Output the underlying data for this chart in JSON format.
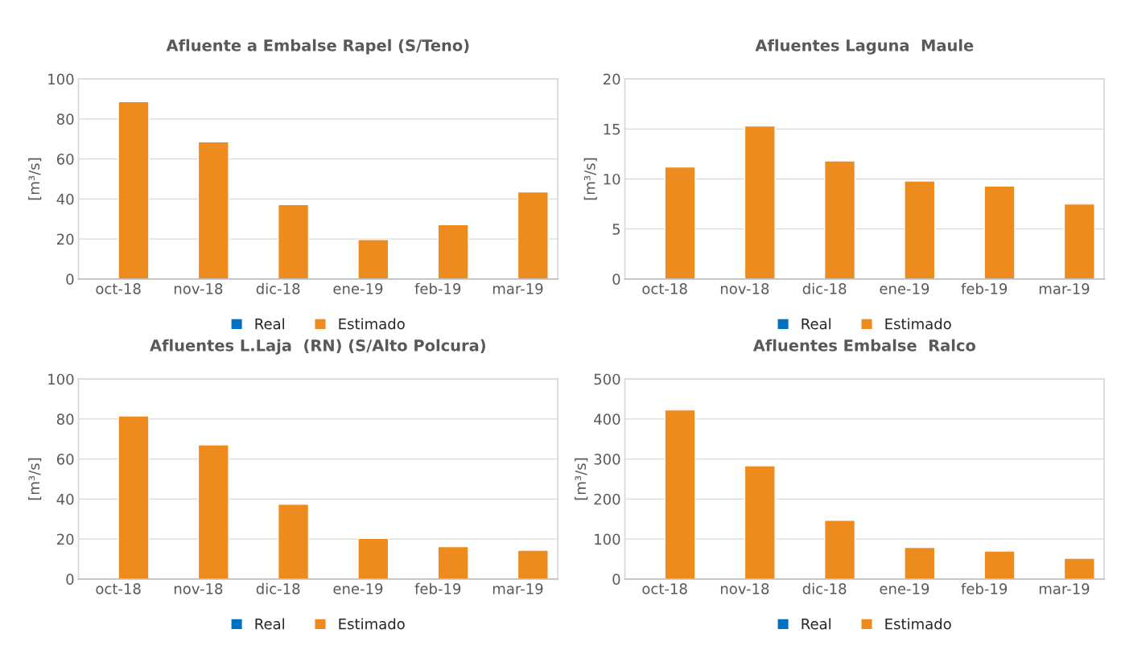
{
  "chart_data": [
    {
      "type": "bar",
      "title": "Afluente a Embalse Rapel (S/Teno)",
      "ylabel": "[m³/s]",
      "categories": [
        "oct-18",
        "nov-18",
        "dic-18",
        "ene-19",
        "feb-19",
        "mar-19"
      ],
      "ylim": [
        0,
        100
      ],
      "yticks": [
        0,
        20,
        40,
        60,
        80,
        100
      ],
      "grid": "y",
      "legend": "bottom",
      "series": [
        {
          "name": "Real",
          "color": "#0070c0",
          "values": [
            null,
            null,
            null,
            null,
            null,
            null
          ]
        },
        {
          "name": "Estimado",
          "color": "#ed8b1f",
          "values": [
            88.7,
            68.6,
            37.2,
            19.7,
            27.2,
            43.5
          ]
        }
      ]
    },
    {
      "type": "bar",
      "title": "Afluentes Laguna  Maule",
      "ylabel": "[m³/s]",
      "categories": [
        "oct-18",
        "nov-18",
        "dic-18",
        "ene-19",
        "feb-19",
        "mar-19"
      ],
      "ylim": [
        0,
        20
      ],
      "yticks": [
        0,
        5,
        10,
        15,
        20
      ],
      "grid": "y",
      "legend": "bottom",
      "series": [
        {
          "name": "Real",
          "color": "#0070c0",
          "values": [
            null,
            null,
            null,
            null,
            null,
            null
          ]
        },
        {
          "name": "Estimado",
          "color": "#ed8b1f",
          "values": [
            11.2,
            15.3,
            11.8,
            9.8,
            9.3,
            7.5
          ]
        }
      ]
    },
    {
      "type": "bar",
      "title": "Afluentes L.Laja  (RN) (S/Alto Polcura)",
      "ylabel": "[m³/s]",
      "categories": [
        "oct-18",
        "nov-18",
        "dic-18",
        "ene-19",
        "feb-19",
        "mar-19"
      ],
      "ylim": [
        0,
        100
      ],
      "yticks": [
        0,
        20,
        40,
        60,
        80,
        100
      ],
      "grid": "y",
      "legend": "bottom",
      "series": [
        {
          "name": "Real",
          "color": "#0070c0",
          "values": [
            null,
            null,
            null,
            null,
            null,
            null
          ]
        },
        {
          "name": "Estimado",
          "color": "#ed8b1f",
          "values": [
            81.5,
            67.1,
            37.4,
            20.3,
            16.2,
            14.4
          ]
        }
      ]
    },
    {
      "type": "bar",
      "title": "Afluentes Embalse  Ralco",
      "ylabel": "[m³/s]",
      "categories": [
        "oct-18",
        "nov-18",
        "dic-18",
        "ene-19",
        "feb-19",
        "mar-19"
      ],
      "ylim": [
        0,
        500
      ],
      "yticks": [
        0,
        100,
        200,
        300,
        400,
        500
      ],
      "grid": "y",
      "legend": "bottom",
      "series": [
        {
          "name": "Real",
          "color": "#0070c0",
          "values": [
            null,
            null,
            null,
            null,
            null,
            null
          ]
        },
        {
          "name": "Estimado",
          "color": "#ed8b1f",
          "values": [
            423,
            283,
            147,
            79,
            70,
            52
          ]
        }
      ]
    }
  ]
}
